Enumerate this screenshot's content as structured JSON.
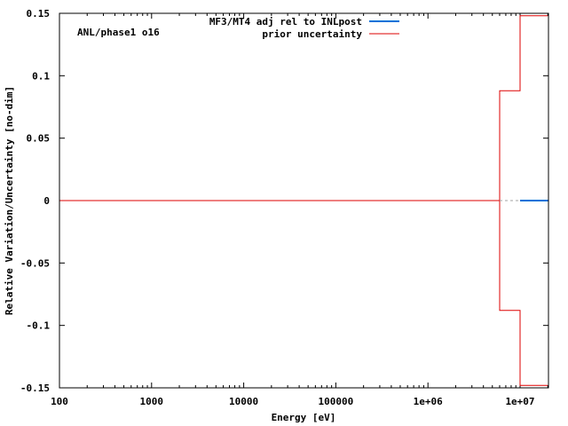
{
  "chart_data": {
    "type": "line",
    "title": "",
    "annotation": "ANL/phase1 o16",
    "xlabel": "Energy [eV]",
    "ylabel": "Relative Variation/Uncertainty [no-dim]",
    "xscale": "log",
    "xlim": [
      100,
      20000000
    ],
    "ylim": [
      -0.15,
      0.15
    ],
    "grid": false,
    "legend_position": "top-center",
    "x_ticks": [
      {
        "value": 100,
        "label": "100"
      },
      {
        "value": 1000,
        "label": "1000"
      },
      {
        "value": 10000,
        "label": "10000"
      },
      {
        "value": 100000,
        "label": "100000"
      },
      {
        "value": 1000000,
        "label": "1e+06"
      },
      {
        "value": 10000000,
        "label": "1e+07"
      }
    ],
    "y_ticks": [
      {
        "value": 0.15,
        "label": "0.15"
      },
      {
        "value": 0.1,
        "label": "0.1"
      },
      {
        "value": 0.05,
        "label": "0.05"
      },
      {
        "value": 0,
        "label": "0"
      },
      {
        "value": -0.05,
        "label": "-0.05"
      },
      {
        "value": -0.1,
        "label": "-0.1"
      },
      {
        "value": -0.15,
        "label": "-0.15"
      }
    ],
    "series": [
      {
        "name": "MF3/MT4 adj rel to INLpost",
        "color": "#0072d8",
        "style": "step",
        "x": [
          10000000,
          20000000
        ],
        "y": [
          0.0,
          0.0
        ],
        "connector": {
          "style": "dashed",
          "color": "#a0a0a0",
          "x": [
            6000000,
            10000000
          ],
          "y": [
            0.0,
            0.0
          ]
        }
      },
      {
        "name": "prior uncertainty",
        "color": "#dd0000",
        "style": "step-symmetric",
        "x": [
          100,
          6000000,
          10000000,
          20000000
        ],
        "y": [
          0.0,
          0.088,
          0.148,
          0.148
        ],
        "y_negative": [
          0.0,
          -0.088,
          -0.148,
          -0.148
        ]
      }
    ]
  },
  "labels": {
    "annotation": "ANL/phase1 o16",
    "legend": [
      "MF3/MT4 adj rel to INLpost",
      "prior uncertainty"
    ],
    "xlabel": "Energy [eV]",
    "ylabel": "Relative Variation/Uncertainty [no-dim]"
  }
}
